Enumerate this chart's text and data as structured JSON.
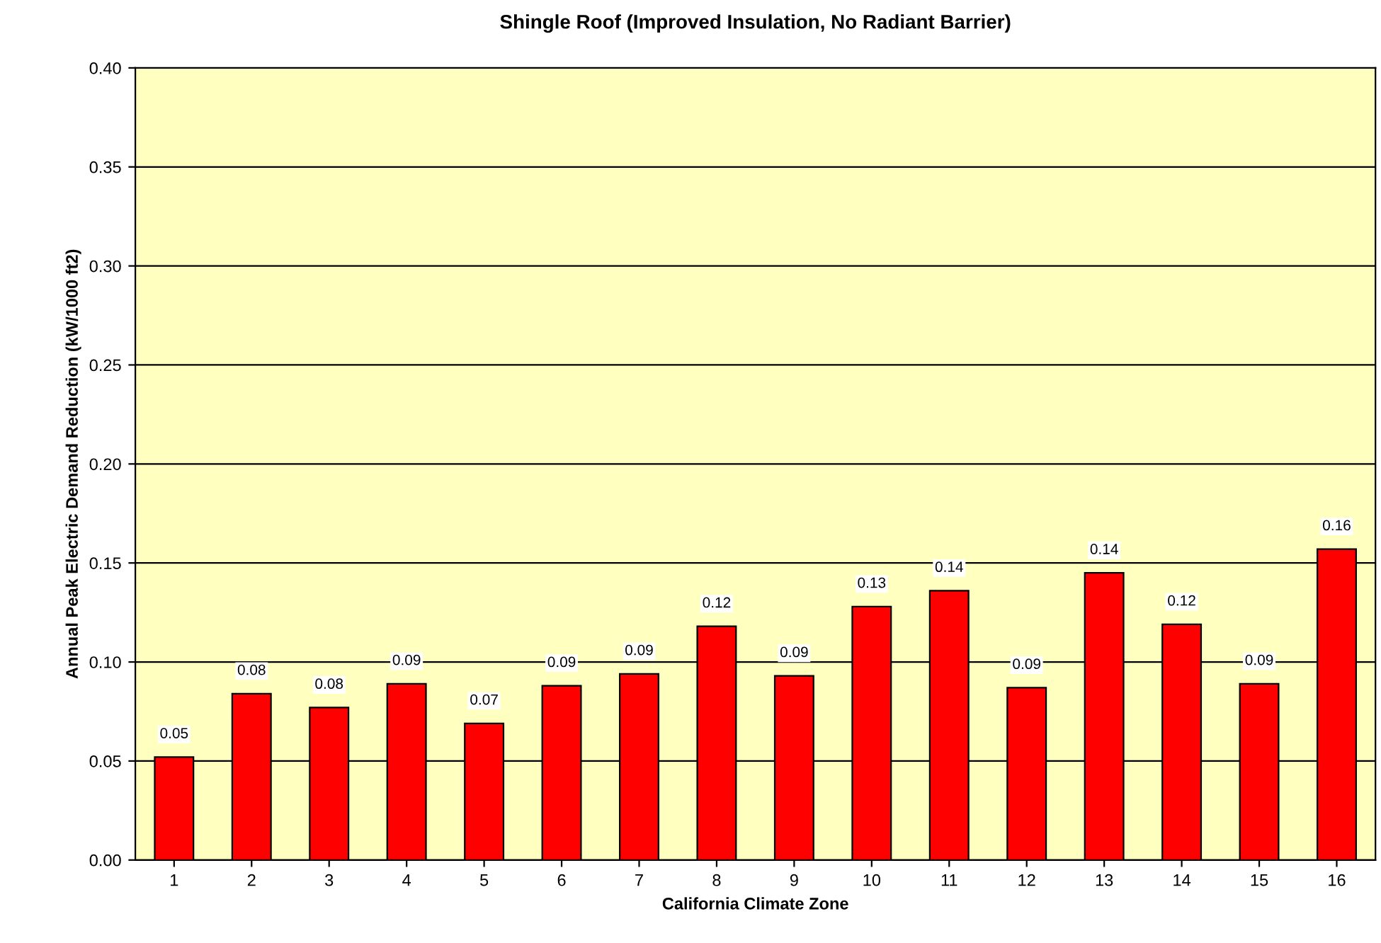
{
  "chart_data": {
    "type": "bar",
    "title": "Shingle Roof (Improved Insulation, No Radiant Barrier)",
    "xlabel": "California Climate Zone",
    "ylabel": "Annual Peak Electric Demand Reduction (kW/1000 ft2)",
    "categories": [
      "1",
      "2",
      "3",
      "4",
      "5",
      "6",
      "7",
      "8",
      "9",
      "10",
      "11",
      "12",
      "13",
      "14",
      "15",
      "16"
    ],
    "values": [
      0.052,
      0.084,
      0.077,
      0.089,
      0.069,
      0.088,
      0.094,
      0.118,
      0.093,
      0.128,
      0.136,
      0.087,
      0.145,
      0.119,
      0.089,
      0.157
    ],
    "value_labels": [
      "0.05",
      "0.08",
      "0.08",
      "0.09",
      "0.07",
      "0.09",
      "0.09",
      "0.12",
      "0.09",
      "0.13",
      "0.14",
      "0.09",
      "0.14",
      "0.12",
      "0.09",
      "0.16"
    ],
    "color": "#ff0000",
    "ylim": [
      0,
      0.4
    ],
    "yticks": [
      {
        "value": 0,
        "label": "0.00"
      },
      {
        "value": 0.05,
        "label": "0.05"
      },
      {
        "value": 0.1,
        "label": "0.10"
      },
      {
        "value": 0.15,
        "label": "0.15"
      },
      {
        "value": 0.2,
        "label": "0.20"
      },
      {
        "value": 0.25,
        "label": "0.25"
      },
      {
        "value": 0.3,
        "label": "0.30"
      },
      {
        "value": 0.35,
        "label": "0.35"
      },
      {
        "value": 0.4,
        "label": "0.40"
      }
    ],
    "grid": "y",
    "legend": false
  }
}
